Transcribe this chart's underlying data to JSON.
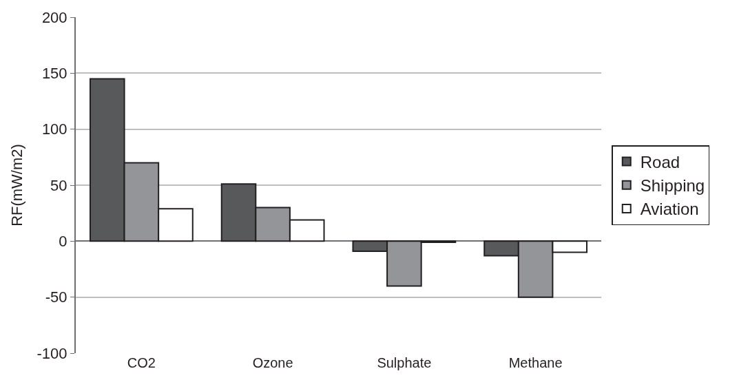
{
  "chart_data": {
    "type": "bar",
    "ylabel": "RF(mW/m2)",
    "categories": [
      "CO2",
      "Ozone",
      "Sulphate",
      "Methane"
    ],
    "series": [
      {
        "name": "Road",
        "color": "#58595b",
        "values": [
          145,
          51,
          -9,
          -13
        ]
      },
      {
        "name": "Shipping",
        "color": "#939598",
        "values": [
          70,
          30,
          -40,
          -50
        ]
      },
      {
        "name": "Aviation",
        "color": "#ffffff",
        "values": [
          29,
          19,
          -1,
          -10
        ]
      }
    ],
    "ylim": [
      -100,
      200
    ],
    "yticks": [
      -100,
      -50,
      0,
      50,
      100,
      150,
      200
    ],
    "grid": "y",
    "legend": "right"
  }
}
